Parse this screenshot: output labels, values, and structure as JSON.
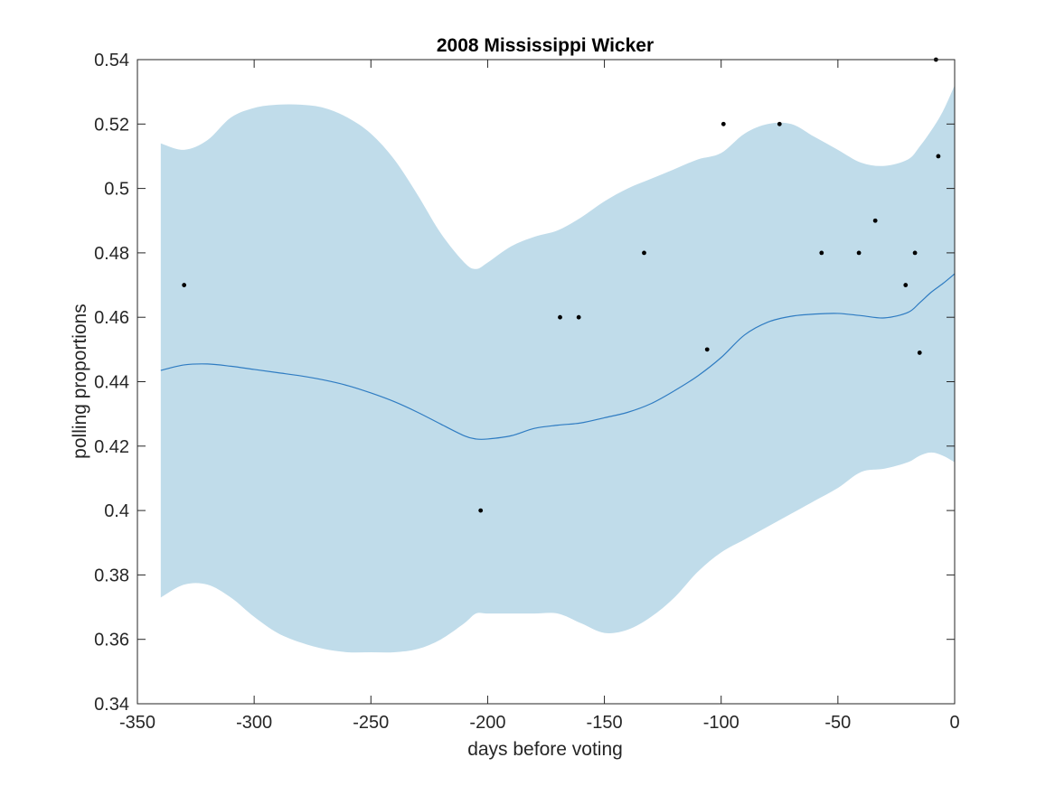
{
  "chart_data": {
    "type": "area",
    "title": "2008 Mississippi Wicker",
    "xlabel": "days before voting",
    "ylabel": "polling proportions",
    "xlim": [
      -350,
      0
    ],
    "ylim": [
      0.34,
      0.54
    ],
    "xticks": [
      -350,
      -300,
      -250,
      -200,
      -150,
      -100,
      -50,
      0
    ],
    "xtick_labels": [
      "-350",
      "-300",
      "-250",
      "-200",
      "-150",
      "-100",
      "-50",
      "0"
    ],
    "yticks": [
      0.34,
      0.36,
      0.38,
      0.4,
      0.42,
      0.44,
      0.46,
      0.48,
      0.5,
      0.52,
      0.54
    ],
    "ytick_labels": [
      "0.34",
      "0.36",
      "0.38",
      "0.4",
      "0.42",
      "0.44",
      "0.46",
      "0.48",
      "0.5",
      "0.52",
      "0.54"
    ],
    "grid": false,
    "legend": "none",
    "colors": {
      "band": "#c0dcea",
      "mean_line": "#2f7cc2",
      "points": "#000000",
      "axes": "#262626"
    },
    "band": {
      "x": [
        -340,
        -330,
        -320,
        -310,
        -300,
        -290,
        -280,
        -270,
        -260,
        -250,
        -240,
        -230,
        -220,
        -210,
        -205,
        -200,
        -190,
        -180,
        -170,
        -160,
        -150,
        -140,
        -130,
        -120,
        -110,
        -100,
        -90,
        -80,
        -70,
        -60,
        -50,
        -40,
        -30,
        -20,
        -15,
        -10,
        -5,
        0
      ],
      "upper": [
        0.514,
        0.512,
        0.515,
        0.522,
        0.525,
        0.526,
        0.526,
        0.525,
        0.522,
        0.517,
        0.509,
        0.498,
        0.486,
        0.477,
        0.475,
        0.477,
        0.482,
        0.485,
        0.487,
        0.491,
        0.496,
        0.5,
        0.503,
        0.506,
        0.509,
        0.511,
        0.517,
        0.52,
        0.52,
        0.516,
        0.512,
        0.508,
        0.507,
        0.509,
        0.513,
        0.518,
        0.524,
        0.532
      ],
      "lower": [
        0.373,
        0.377,
        0.377,
        0.373,
        0.367,
        0.362,
        0.359,
        0.357,
        0.356,
        0.356,
        0.356,
        0.357,
        0.36,
        0.365,
        0.368,
        0.368,
        0.368,
        0.368,
        0.368,
        0.365,
        0.362,
        0.363,
        0.367,
        0.373,
        0.381,
        0.387,
        0.391,
        0.395,
        0.399,
        0.403,
        0.407,
        0.412,
        0.413,
        0.415,
        0.417,
        0.418,
        0.417,
        0.415
      ]
    },
    "series": [
      {
        "x": [
          -340,
          -330,
          -320,
          -310,
          -300,
          -290,
          -280,
          -270,
          -260,
          -250,
          -240,
          -230,
          -220,
          -210,
          -205,
          -200,
          -190,
          -180,
          -170,
          -160,
          -150,
          -140,
          -130,
          -120,
          -110,
          -100,
          -90,
          -80,
          -70,
          -60,
          -50,
          -40,
          -30,
          -20,
          -15,
          -10,
          -5,
          0
        ],
        "y": [
          0.4435,
          0.4452,
          0.4455,
          0.4448,
          0.4438,
          0.4428,
          0.4418,
          0.4405,
          0.4388,
          0.4365,
          0.4338,
          0.4305,
          0.4268,
          0.4232,
          0.4222,
          0.4222,
          0.4232,
          0.4255,
          0.4265,
          0.4272,
          0.4288,
          0.4305,
          0.4332,
          0.4372,
          0.4418,
          0.4475,
          0.4545,
          0.4585,
          0.4603,
          0.461,
          0.4612,
          0.4605,
          0.4598,
          0.4615,
          0.4645,
          0.4678,
          0.4705,
          0.4735
        ]
      }
    ],
    "points": [
      {
        "x": -330,
        "y": 0.47
      },
      {
        "x": -203,
        "y": 0.4
      },
      {
        "x": -169,
        "y": 0.46
      },
      {
        "x": -161,
        "y": 0.46
      },
      {
        "x": -133,
        "y": 0.48
      },
      {
        "x": -106,
        "y": 0.45
      },
      {
        "x": -99,
        "y": 0.52
      },
      {
        "x": -75,
        "y": 0.52
      },
      {
        "x": -57,
        "y": 0.48
      },
      {
        "x": -41,
        "y": 0.48
      },
      {
        "x": -34,
        "y": 0.49
      },
      {
        "x": -21,
        "y": 0.47
      },
      {
        "x": -17,
        "y": 0.48
      },
      {
        "x": -15,
        "y": 0.449
      },
      {
        "x": -8,
        "y": 0.54
      },
      {
        "x": -7,
        "y": 0.51
      }
    ]
  }
}
